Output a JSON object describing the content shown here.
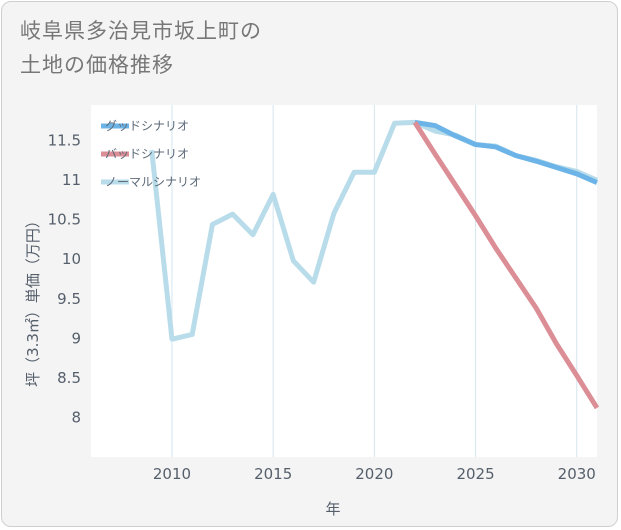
{
  "title_line1": "岐阜県多治見市坂上町の",
  "title_line2": "土地の価格推移",
  "chart_data": {
    "type": "line",
    "title": "岐阜県多治見市坂上町の土地の価格推移",
    "xlabel": "年",
    "ylabel": "坪（3.3㎡）単価（万円）",
    "xlim": [
      2006,
      2031
    ],
    "ylim": [
      7.5,
      11.95
    ],
    "xticks": [
      2010,
      2015,
      2020,
      2025,
      2030
    ],
    "yticks": [
      8,
      8.5,
      9,
      9.5,
      10,
      10.5,
      11,
      11.5
    ],
    "legend_position": "top-left",
    "series": [
      {
        "name": "グッドシナリオ",
        "color": "#6cb4e8",
        "x": [
          2022,
          2023,
          2024,
          2025,
          2026,
          2027,
          2028,
          2029,
          2030,
          2031
        ],
        "y": [
          11.73,
          11.69,
          11.56,
          11.45,
          11.42,
          11.31,
          11.24,
          11.16,
          11.08,
          10.97
        ]
      },
      {
        "name": "バッドシナリオ",
        "color": "#dc8e96",
        "x": [
          2022,
          2023,
          2024,
          2025,
          2026,
          2027,
          2028,
          2029,
          2030,
          2031
        ],
        "y": [
          11.73,
          11.33,
          10.94,
          10.55,
          10.14,
          9.76,
          9.38,
          8.93,
          8.53,
          8.12
        ]
      },
      {
        "name": "ノーマルシナリオ",
        "color": "#b9dceb",
        "x": [
          2009,
          2010,
          2011,
          2012,
          2013,
          2014,
          2015,
          2016,
          2017,
          2018,
          2019,
          2020,
          2021,
          2022,
          2023,
          2024,
          2025,
          2026,
          2027,
          2028,
          2029,
          2030,
          2031
        ],
        "y": [
          11.38,
          8.99,
          9.05,
          10.44,
          10.57,
          10.31,
          10.82,
          9.98,
          9.71,
          10.58,
          11.1,
          11.1,
          11.72,
          11.73,
          11.62,
          11.57,
          11.45,
          11.43,
          11.31,
          11.25,
          11.17,
          11.11,
          11.0
        ]
      }
    ]
  }
}
